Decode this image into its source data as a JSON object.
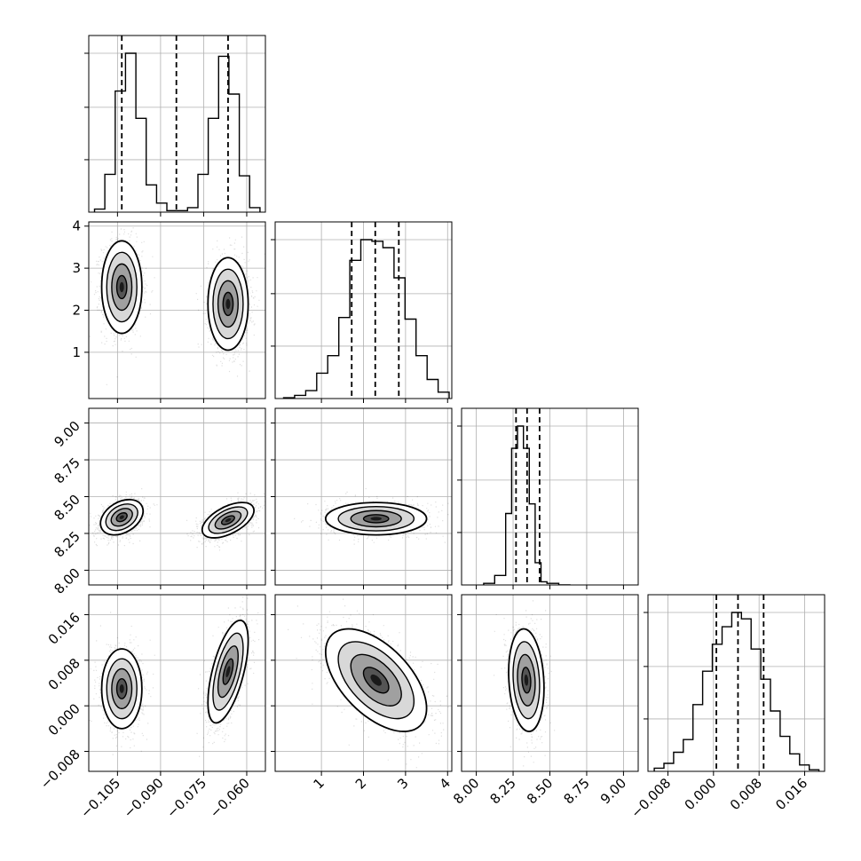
{
  "chart_data": {
    "type": "corner",
    "title": "",
    "grid": true,
    "parameters": [
      {
        "lim": [
          -0.115,
          -0.0535
        ],
        "ticks": [
          -0.105,
          -0.09,
          -0.075,
          -0.06
        ],
        "tick_labels": [
          "−0.105",
          "−0.090",
          "−0.075",
          "−0.060"
        ],
        "quantiles": [
          -0.1035,
          -0.0845,
          -0.0665
        ],
        "hist": {
          "bins": [
            -0.113,
            -0.1094,
            -0.1058,
            -0.1022,
            -0.0986,
            -0.095,
            -0.0914,
            -0.0878,
            -0.0842,
            -0.0806,
            -0.077,
            -0.0734,
            -0.0698,
            -0.0662,
            -0.0626,
            -0.059,
            -0.0554
          ],
          "counts": [
            0.02,
            0.25,
            0.8,
            1.05,
            0.62,
            0.18,
            0.06,
            0.01,
            0.01,
            0.03,
            0.25,
            0.62,
            1.03,
            0.78,
            0.24,
            0.03
          ]
        }
      },
      {
        "lim": [
          -0.1,
          4.1
        ],
        "ticks": [
          1,
          2,
          3,
          4
        ],
        "tick_labels": [
          "1",
          "2",
          "3",
          "4"
        ],
        "quantiles": [
          1.72,
          2.28,
          2.84
        ],
        "hist": {
          "bins": [
            0.1,
            0.3625,
            0.625,
            0.8875,
            1.15,
            1.4125,
            1.675,
            1.9375,
            2.2,
            2.4625,
            2.725,
            2.9875,
            3.25,
            3.5125,
            3.775,
            4.0375
          ],
          "counts": [
            0.005,
            0.02,
            0.05,
            0.16,
            0.27,
            0.51,
            0.87,
            1.0,
            0.99,
            0.95,
            0.76,
            0.5,
            0.27,
            0.12,
            0.04
          ]
        }
      },
      {
        "lim": [
          7.9,
          9.1
        ],
        "ticks": [
          8.0,
          8.25,
          8.5,
          8.75,
          9.0
        ],
        "tick_labels": [
          "8.00",
          "8.25",
          "8.50",
          "8.75",
          "9.00"
        ],
        "quantiles": [
          8.27,
          8.345,
          8.43
        ],
        "hist": {
          "bins": [
            8.05,
            8.125,
            8.2,
            8.24,
            8.28,
            8.32,
            8.36,
            8.4,
            8.44,
            8.48,
            8.56,
            8.64
          ],
          "counts": [
            0.01,
            0.06,
            0.45,
            0.86,
            1.0,
            0.86,
            0.51,
            0.14,
            0.02,
            0.01,
            0.0
          ]
        }
      },
      {
        "lim": [
          -0.0115,
          0.0195
        ],
        "ticks": [
          -0.008,
          0.0,
          0.008,
          0.016
        ],
        "tick_labels": [
          "−0.008",
          "0.000",
          "0.008",
          "0.016"
        ],
        "quantiles": [
          0.0005,
          0.0043,
          0.0088
        ],
        "hist": {
          "bins": [
            -0.0104,
            -0.0087,
            -0.007,
            -0.0053,
            -0.0036,
            -0.0019,
            -0.0002,
            0.0015,
            0.0032,
            0.0049,
            0.0066,
            0.0083,
            0.01,
            0.0117,
            0.0134,
            0.0151,
            0.0168,
            0.0185
          ],
          "counts": [
            0.02,
            0.05,
            0.12,
            0.2,
            0.42,
            0.63,
            0.8,
            0.91,
            1.0,
            0.96,
            0.77,
            0.58,
            0.38,
            0.22,
            0.11,
            0.04,
            0.01
          ]
        }
      }
    ],
    "pairs": [
      {
        "row": 1,
        "col": 0,
        "modes": [
          {
            "center": [
              -0.1035,
              2.55
            ],
            "sigma": [
              0.0035,
              0.55
            ],
            "rho": 0.0
          },
          {
            "center": [
              -0.0665,
              2.15
            ],
            "sigma": [
              0.0035,
              0.55
            ],
            "rho": 0.0
          }
        ]
      },
      {
        "row": 2,
        "col": 0,
        "modes": [
          {
            "center": [
              -0.1035,
              8.36
            ],
            "sigma": [
              0.0037,
              0.06
            ],
            "rho": 0.35
          },
          {
            "center": [
              -0.0665,
              8.34
            ],
            "sigma": [
              0.0045,
              0.06
            ],
            "rho": 0.55
          }
        ]
      },
      {
        "row": 2,
        "col": 1,
        "modes": [
          {
            "center": [
              2.3,
              8.35
            ],
            "sigma": [
              0.6,
              0.055
            ],
            "rho": 0.0
          }
        ]
      },
      {
        "row": 3,
        "col": 0,
        "modes": [
          {
            "center": [
              -0.1035,
              0.003
            ],
            "sigma": [
              0.0035,
              0.0035
            ],
            "rho": 0.0
          },
          {
            "center": [
              -0.0665,
              0.006
            ],
            "sigma": [
              0.0035,
              0.0045
            ],
            "rho": 0.6
          }
        ]
      },
      {
        "row": 3,
        "col": 1,
        "modes": [
          {
            "center": [
              2.3,
              0.0045
            ],
            "sigma": [
              0.6,
              0.0045
            ],
            "rho": -0.55
          }
        ]
      },
      {
        "row": 3,
        "col": 2,
        "modes": [
          {
            "center": [
              8.34,
              0.0045
            ],
            "sigma": [
              0.06,
              0.0045
            ],
            "rho": -0.15
          }
        ]
      }
    ]
  }
}
